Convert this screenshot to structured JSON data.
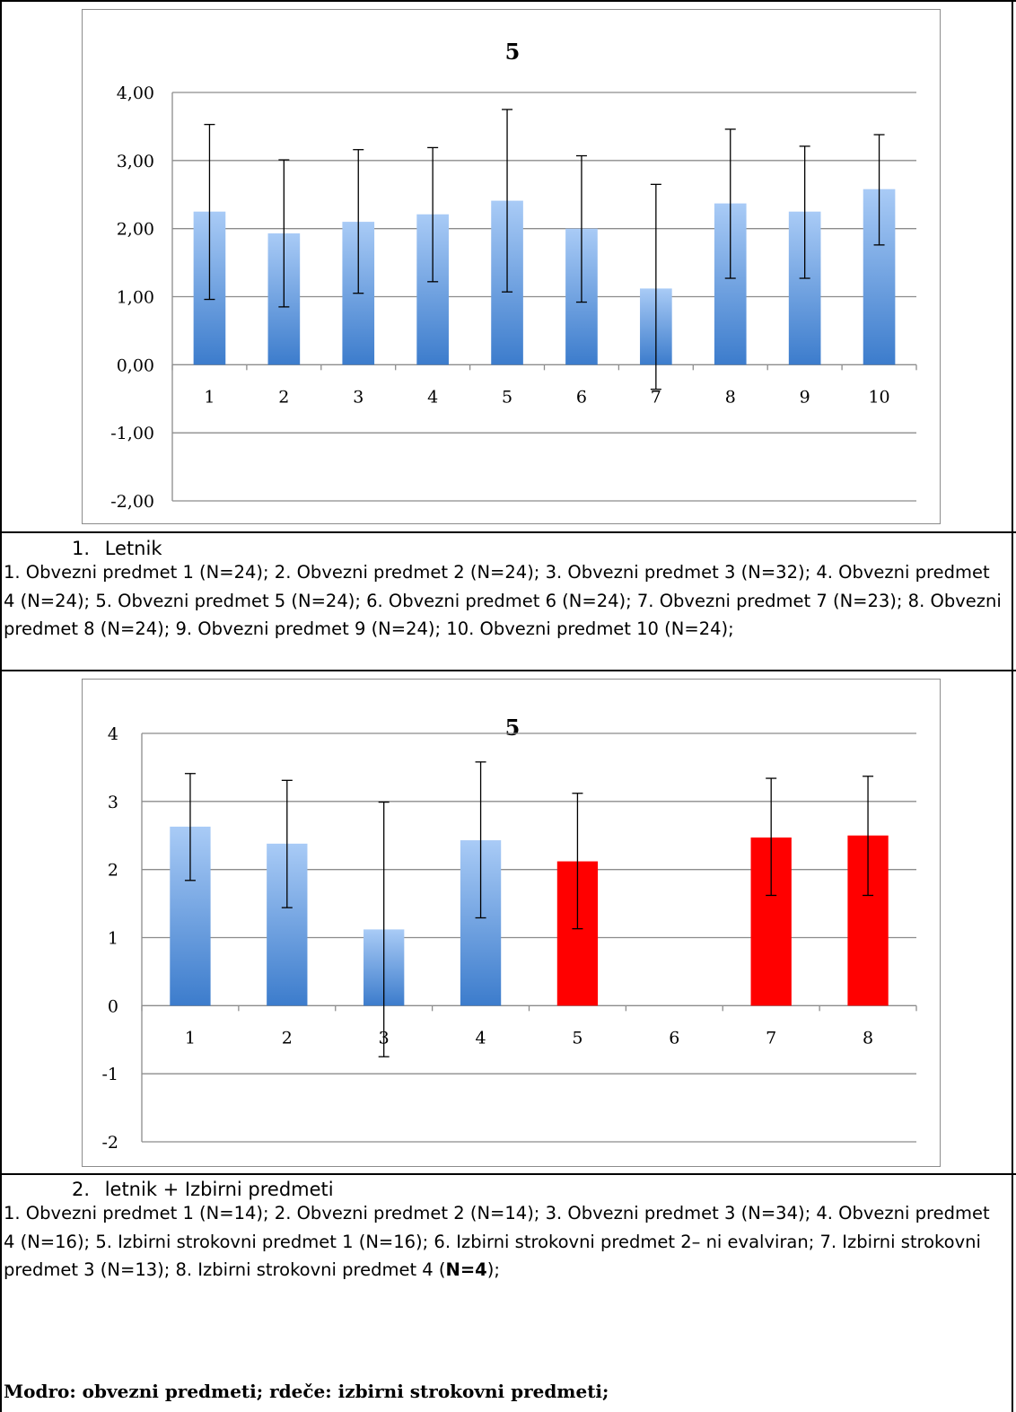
{
  "chart_data": [
    {
      "type": "bar",
      "title": "5",
      "categories": [
        "1",
        "2",
        "3",
        "4",
        "5",
        "6",
        "7",
        "8",
        "9",
        "10"
      ],
      "y_tick_labels": [
        "4,00",
        "3,00",
        "2,00",
        "1,00",
        "0,00",
        "-1,00",
        "-2,00"
      ],
      "ylim": [
        -2,
        4
      ],
      "grid": true,
      "series": [
        {
          "values": [
            2.25,
            1.93,
            2.1,
            2.21,
            2.41,
            2.0,
            1.12,
            2.37,
            2.25,
            2.58
          ],
          "error_low": [
            0.96,
            0.85,
            1.05,
            1.22,
            1.07,
            0.92,
            -0.36,
            1.27,
            1.27,
            1.76
          ],
          "error_high": [
            3.53,
            3.01,
            3.16,
            3.19,
            3.75,
            3.07,
            2.65,
            3.46,
            3.21,
            3.38
          ],
          "colors": [
            "#5b93d9",
            "#5b93d9",
            "#5b93d9",
            "#5b93d9",
            "#5b93d9",
            "#5b93d9",
            "#5b93d9",
            "#5b93d9",
            "#5b93d9",
            "#5b93d9"
          ]
        }
      ]
    },
    {
      "type": "bar",
      "title": "5",
      "categories": [
        "1",
        "2",
        "3",
        "4",
        "5",
        "6",
        "7",
        "8"
      ],
      "y_tick_labels": [
        "4",
        "3",
        "2",
        "1",
        "0",
        "-1",
        "-2"
      ],
      "ylim": [
        -2,
        4
      ],
      "grid": true,
      "series": [
        {
          "values": [
            2.63,
            2.38,
            1.12,
            2.43,
            2.12,
            null,
            2.47,
            2.5
          ],
          "error_low": [
            1.84,
            1.44,
            -0.75,
            1.29,
            1.13,
            null,
            1.62,
            1.62
          ],
          "error_high": [
            3.41,
            3.31,
            2.99,
            3.58,
            3.12,
            null,
            3.34,
            3.37
          ],
          "colors": [
            "#5b93d9",
            "#5b93d9",
            "#5b93d9",
            "#5b93d9",
            "#ff0000",
            "#ff0000",
            "#ff0000",
            "#ff0000"
          ]
        }
      ]
    }
  ],
  "captions": {
    "first": {
      "number": "1.",
      "heading": "Letnik",
      "text": "1. Obvezni predmet 1 (N=24); 2. Obvezni predmet 2 (N=24); 3. Obvezni predmet 3 (N=32); 4. Obvezni predmet 4 (N=24); 5. Obvezni predmet 5 (N=24); 6. Obvezni predmet 6 (N=24); 7. Obvezni predmet 7 (N=23); 8. Obvezni predmet 8 (N=24); 9. Obvezni predmet 9 (N=24); 10. Obvezni predmet 10 (N=24);"
    },
    "second": {
      "number": "2.",
      "heading": "letnik + Izbirni predmeti",
      "text_before_bold": "1. Obvezni predmet 1 (N=14); 2. Obvezni predmet 2 (N=14); 3. Obvezni predmet 3 (N=34); 4. Obvezni predmet 4 (N=16); 5. Izbirni strokovni predmet 1 (N=16); 6. Izbirni strokovni predmet 2– ni evalviran; 7. Izbirni strokovni predmet 3 (N=13); 8. Izbirni strokovni predmet 4 (",
      "bold": "N=4",
      "text_after_bold": ");"
    },
    "note": "Modro: obvezni predmeti; rdeče: izbirni strokovni predmeti;"
  }
}
